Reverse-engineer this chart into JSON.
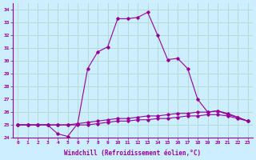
{
  "title": "",
  "xlabel": "Windchill (Refroidissement éolien,°C)",
  "ylabel": "",
  "background_color": "#cceeff",
  "grid_color": "#b0d8cc",
  "line_color": "#990099",
  "xlim": [
    -0.5,
    23.5
  ],
  "ylim": [
    24,
    34.5
  ],
  "yticks": [
    24,
    25,
    26,
    27,
    28,
    29,
    30,
    31,
    32,
    33,
    34
  ],
  "xticks": [
    0,
    1,
    2,
    3,
    4,
    5,
    6,
    7,
    8,
    9,
    10,
    11,
    12,
    13,
    14,
    15,
    16,
    17,
    18,
    19,
    20,
    21,
    22,
    23
  ],
  "series1": [
    25.0,
    25.0,
    25.0,
    25.0,
    24.3,
    24.1,
    25.1,
    29.4,
    30.7,
    31.1,
    33.3,
    33.3,
    33.4,
    33.8,
    32.0,
    30.1,
    30.2,
    29.4,
    27.0,
    26.0,
    26.1,
    25.8,
    25.6,
    25.3
  ],
  "series2": [
    25.0,
    25.0,
    25.0,
    25.0,
    25.0,
    25.0,
    25.1,
    25.2,
    25.3,
    25.4,
    25.5,
    25.5,
    25.6,
    25.7,
    25.7,
    25.8,
    25.9,
    25.9,
    26.0,
    26.0,
    26.1,
    25.9,
    25.6,
    25.3
  ],
  "series3": [
    25.0,
    25.0,
    25.0,
    25.0,
    25.0,
    25.0,
    25.0,
    25.0,
    25.1,
    25.2,
    25.3,
    25.3,
    25.4,
    25.4,
    25.5,
    25.5,
    25.6,
    25.7,
    25.7,
    25.8,
    25.8,
    25.7,
    25.5,
    25.3
  ]
}
